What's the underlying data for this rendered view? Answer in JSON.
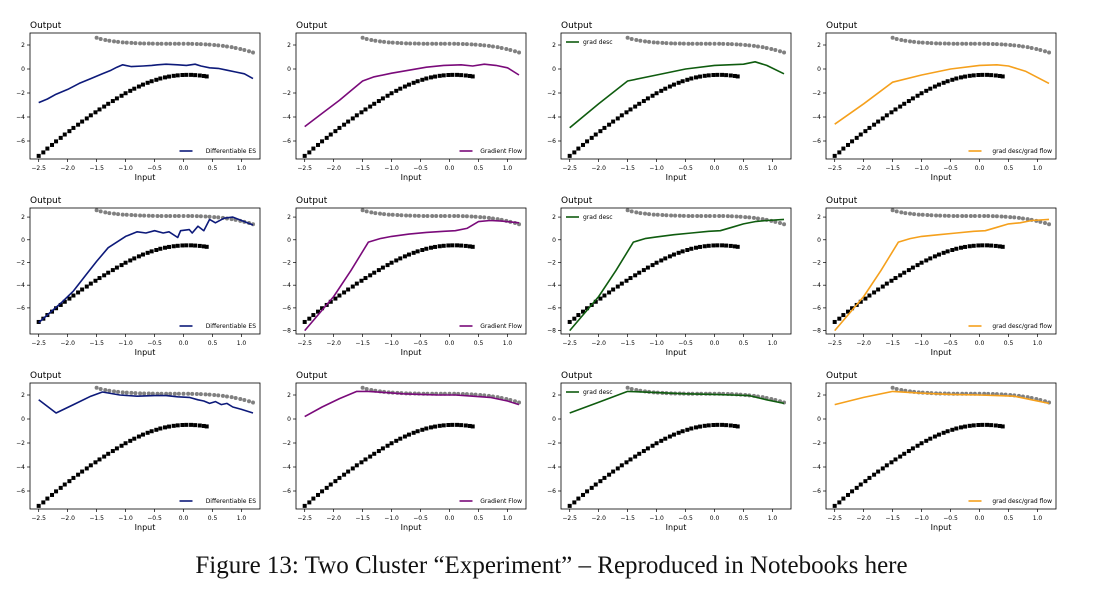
{
  "caption": "Figure 13: Two Cluster “Experiment” – Reproduced in Notebooks here",
  "axes_common": {
    "ylabel": "Output",
    "xlabel": "Input",
    "xticks": [
      -2.5,
      -2.0,
      -1.5,
      -1.0,
      -0.5,
      0.0,
      0.5,
      1.0
    ],
    "xtick_labels": [
      "−2.5",
      "−2.0",
      "−1.5",
      "−1.0",
      "−0.5",
      "0.0",
      "0.5",
      "1.0"
    ]
  },
  "colors": {
    "Differentiable ES": "#0d1a7a",
    "Gradient Flow": "#7a0a7a",
    "grad desc": "#0f5c0f",
    "grad desc/grad flow": "#f5a01c",
    "black_points": "#000000",
    "gray_points": "#808080"
  },
  "chart_data": {
    "type": "line",
    "black_points": {
      "x": [
        -2.5,
        -2.42,
        -2.35,
        -2.27,
        -2.2,
        -2.12,
        -2.05,
        -1.97,
        -1.9,
        -1.82,
        -1.75,
        -1.67,
        -1.6,
        -1.52,
        -1.45,
        -1.37,
        -1.3,
        -1.22,
        -1.15,
        -1.07,
        -1.0,
        -0.92,
        -0.85,
        -0.77,
        -0.7,
        -0.62,
        -0.55,
        -0.47,
        -0.4,
        -0.32,
        -0.25,
        -0.17,
        -0.1,
        -0.02,
        0.05,
        0.13,
        0.2,
        0.28,
        0.35,
        0.4
      ],
      "y": [
        -7.24,
        -6.95,
        -6.63,
        -6.33,
        -6.03,
        -5.74,
        -5.46,
        -5.18,
        -4.91,
        -4.64,
        -4.38,
        -4.12,
        -3.86,
        -3.61,
        -3.37,
        -3.13,
        -2.9,
        -2.67,
        -2.45,
        -2.23,
        -2.02,
        -1.82,
        -1.64,
        -1.46,
        -1.3,
        -1.15,
        -1.02,
        -0.9,
        -0.79,
        -0.7,
        -0.63,
        -0.57,
        -0.53,
        -0.5,
        -0.49,
        -0.49,
        -0.51,
        -0.54,
        -0.58,
        -0.62
      ]
    },
    "gray_points": {
      "x": [
        -1.5,
        -1.43,
        -1.35,
        -1.28,
        -1.2,
        -1.13,
        -1.05,
        -0.98,
        -0.9,
        -0.83,
        -0.75,
        -0.68,
        -0.6,
        -0.53,
        -0.45,
        -0.38,
        -0.3,
        -0.23,
        -0.15,
        -0.08,
        0.0,
        0.08,
        0.15,
        0.23,
        0.3,
        0.38,
        0.45,
        0.53,
        0.6,
        0.68,
        0.75,
        0.83,
        0.9,
        0.98,
        1.05,
        1.13,
        1.2
      ],
      "y": [
        2.6,
        2.5,
        2.42,
        2.35,
        2.3,
        2.26,
        2.22,
        2.2,
        2.18,
        2.16,
        2.14,
        2.13,
        2.12,
        2.11,
        2.1,
        2.1,
        2.1,
        2.1,
        2.1,
        2.1,
        2.1,
        2.1,
        2.09,
        2.08,
        2.07,
        2.05,
        2.03,
        2.0,
        1.97,
        1.93,
        1.88,
        1.82,
        1.75,
        1.67,
        1.58,
        1.48,
        1.37
      ]
    },
    "panels": [
      {
        "row": 0,
        "col": 0,
        "ylim": [
          -7.5,
          3.0
        ],
        "yticks": [
          -6,
          -4,
          -2,
          0,
          2
        ],
        "legend": "Differentiable ES",
        "legend_loc": "lower right",
        "x": [
          -2.5,
          -2.35,
          -2.2,
          -2.0,
          -1.8,
          -1.6,
          -1.4,
          -1.25,
          -1.15,
          -1.05,
          -0.9,
          -0.7,
          -0.55,
          -0.45,
          -0.3,
          -0.1,
          0.05,
          0.2,
          0.3,
          0.45,
          0.6,
          0.75,
          0.9,
          1.05,
          1.2
        ],
        "y": [
          -2.8,
          -2.5,
          -2.1,
          -1.7,
          -1.2,
          -0.8,
          -0.4,
          -0.1,
          0.15,
          0.35,
          0.2,
          0.25,
          0.3,
          0.35,
          0.4,
          0.35,
          0.3,
          0.4,
          0.25,
          0.1,
          0.05,
          -0.1,
          -0.25,
          -0.4,
          -0.8
        ]
      },
      {
        "row": 0,
        "col": 1,
        "ylim": [
          -7.5,
          3.0
        ],
        "yticks": [
          -6,
          -4,
          -2,
          0,
          2
        ],
        "legend": "Gradient Flow",
        "legend_loc": "lower right",
        "x": [
          -2.5,
          -2.2,
          -1.9,
          -1.7,
          -1.5,
          -1.3,
          -1.0,
          -0.7,
          -0.4,
          -0.1,
          0.2,
          0.4,
          0.6,
          0.8,
          1.0,
          1.2
        ],
        "y": [
          -4.8,
          -3.7,
          -2.6,
          -1.8,
          -1.0,
          -0.65,
          -0.35,
          -0.1,
          0.15,
          0.3,
          0.35,
          0.25,
          0.4,
          0.3,
          0.1,
          -0.5
        ]
      },
      {
        "row": 0,
        "col": 2,
        "ylim": [
          -7.5,
          3.0
        ],
        "yticks": [
          -6,
          -4,
          -2,
          0,
          2
        ],
        "legend": "grad desc",
        "legend_loc": "upper left",
        "x": [
          -2.5,
          -2.0,
          -1.5,
          -1.0,
          -0.5,
          0.0,
          0.5,
          0.7,
          0.9,
          1.2
        ],
        "y": [
          -4.9,
          -2.9,
          -1.0,
          -0.5,
          0.0,
          0.3,
          0.4,
          0.6,
          0.3,
          -0.4
        ]
      },
      {
        "row": 0,
        "col": 3,
        "ylim": [
          -7.5,
          3.0
        ],
        "yticks": [
          -6,
          -4,
          -2,
          0,
          2
        ],
        "legend": "grad desc/grad flow",
        "legend_loc": "lower right",
        "x": [
          -2.5,
          -2.0,
          -1.5,
          -1.0,
          -0.5,
          0.0,
          0.3,
          0.5,
          0.8,
          1.2
        ],
        "y": [
          -4.6,
          -2.9,
          -1.1,
          -0.5,
          0.0,
          0.3,
          0.35,
          0.25,
          -0.2,
          -1.2
        ]
      },
      {
        "row": 1,
        "col": 0,
        "ylim": [
          -8.3,
          2.8
        ],
        "yticks": [
          -6,
          -4,
          -2,
          0,
          2
        ],
        "legend": "Differentiable ES",
        "legend_loc": "lower right",
        "x": [
          -2.5,
          -2.3,
          -2.1,
          -1.9,
          -1.7,
          -1.5,
          -1.3,
          -1.15,
          -1.0,
          -0.8,
          -0.65,
          -0.5,
          -0.35,
          -0.25,
          -0.1,
          -0.05,
          0.1,
          0.15,
          0.25,
          0.35,
          0.45,
          0.55,
          0.7,
          0.85,
          1.0,
          1.2
        ],
        "y": [
          -7.3,
          -6.4,
          -5.5,
          -4.5,
          -3.2,
          -1.9,
          -0.7,
          -0.2,
          0.3,
          0.7,
          0.6,
          0.8,
          0.6,
          0.7,
          0.2,
          0.8,
          0.9,
          0.6,
          1.2,
          0.8,
          1.8,
          1.5,
          1.9,
          2.0,
          1.7,
          1.3
        ]
      },
      {
        "row": 1,
        "col": 1,
        "ylim": [
          -8.3,
          2.8
        ],
        "yticks": [
          -8,
          -6,
          -4,
          -2,
          0,
          2
        ],
        "legend": "Gradient Flow",
        "legend_loc": "lower right",
        "x": [
          -2.5,
          -2.0,
          -1.7,
          -1.4,
          -1.2,
          -1.0,
          -0.7,
          -0.4,
          -0.1,
          0.1,
          0.3,
          0.5,
          0.7,
          0.9,
          1.2
        ],
        "y": [
          -8.0,
          -5.0,
          -2.7,
          -0.2,
          0.1,
          0.3,
          0.5,
          0.65,
          0.75,
          0.8,
          1.0,
          1.6,
          1.7,
          1.65,
          1.5
        ]
      },
      {
        "row": 1,
        "col": 2,
        "ylim": [
          -8.3,
          2.8
        ],
        "yticks": [
          -8,
          -6,
          -4,
          -2,
          0,
          2
        ],
        "legend": "grad desc",
        "legend_loc": "upper left",
        "x": [
          -2.5,
          -2.0,
          -1.7,
          -1.4,
          -1.2,
          -1.0,
          -0.7,
          -0.4,
          -0.1,
          0.1,
          0.3,
          0.5,
          0.7,
          0.9,
          1.2
        ],
        "y": [
          -8.0,
          -5.0,
          -2.7,
          -0.2,
          0.1,
          0.25,
          0.45,
          0.6,
          0.75,
          0.8,
          1.1,
          1.4,
          1.6,
          1.7,
          1.8
        ]
      },
      {
        "row": 1,
        "col": 3,
        "ylim": [
          -8.3,
          2.8
        ],
        "yticks": [
          -8,
          -6,
          -4,
          -2,
          0,
          2
        ],
        "legend": "grad desc/grad flow",
        "legend_loc": "lower right",
        "x": [
          -2.5,
          -2.0,
          -1.7,
          -1.4,
          -1.2,
          -1.0,
          -0.7,
          -0.4,
          -0.1,
          0.1,
          0.3,
          0.5,
          0.7,
          0.9,
          1.2
        ],
        "y": [
          -8.0,
          -5.0,
          -2.7,
          -0.2,
          0.1,
          0.3,
          0.45,
          0.6,
          0.75,
          0.8,
          1.1,
          1.4,
          1.5,
          1.7,
          1.8
        ]
      },
      {
        "row": 2,
        "col": 0,
        "ylim": [
          -7.5,
          3.0
        ],
        "yticks": [
          -6,
          -4,
          -2,
          0,
          2
        ],
        "legend": "Differentiable ES",
        "legend_loc": "lower right",
        "x": [
          -2.5,
          -2.2,
          -1.9,
          -1.6,
          -1.4,
          -1.1,
          -0.8,
          -0.5,
          -0.3,
          -0.1,
          0.1,
          0.25,
          0.35,
          0.45,
          0.55,
          0.65,
          0.75,
          0.85,
          1.0,
          1.2
        ],
        "y": [
          1.6,
          0.5,
          1.2,
          1.9,
          2.25,
          2.0,
          1.9,
          1.95,
          1.95,
          1.85,
          1.8,
          1.6,
          1.5,
          1.3,
          1.45,
          1.2,
          1.3,
          1.0,
          0.8,
          0.5
        ]
      },
      {
        "row": 2,
        "col": 1,
        "ylim": [
          -7.5,
          3.0
        ],
        "yticks": [
          -6,
          -4,
          -2,
          0,
          2
        ],
        "legend": "Gradient Flow",
        "legend_loc": "lower right",
        "x": [
          -2.5,
          -2.2,
          -1.9,
          -1.6,
          -1.4,
          -1.1,
          -0.8,
          -0.5,
          -0.2,
          0.1,
          0.4,
          0.7,
          1.0,
          1.2
        ],
        "y": [
          0.2,
          1.0,
          1.7,
          2.3,
          2.3,
          2.2,
          2.1,
          2.05,
          2.0,
          2.0,
          1.9,
          1.8,
          1.5,
          1.2
        ]
      },
      {
        "row": 2,
        "col": 2,
        "ylim": [
          -7.5,
          3.0
        ],
        "yticks": [
          -6,
          -4,
          -2,
          0,
          2
        ],
        "legend": "grad desc",
        "legend_loc": "upper left",
        "x": [
          -2.5,
          -2.0,
          -1.5,
          -1.0,
          -0.5,
          0.0,
          0.3,
          0.6,
          0.9,
          1.2
        ],
        "y": [
          0.5,
          1.4,
          2.3,
          2.2,
          2.1,
          2.05,
          2.0,
          1.95,
          1.6,
          1.3
        ]
      },
      {
        "row": 2,
        "col": 3,
        "ylim": [
          -7.5,
          3.0
        ],
        "yticks": [
          -6,
          -4,
          -2,
          0,
          2
        ],
        "legend": "grad desc/grad flow",
        "legend_loc": "lower right",
        "x": [
          -2.5,
          -2.0,
          -1.5,
          -1.0,
          -0.5,
          0.0,
          0.3,
          0.6,
          0.9,
          1.2
        ],
        "y": [
          1.2,
          1.8,
          2.3,
          2.15,
          2.05,
          2.0,
          1.95,
          1.9,
          1.6,
          1.3
        ]
      }
    ]
  }
}
